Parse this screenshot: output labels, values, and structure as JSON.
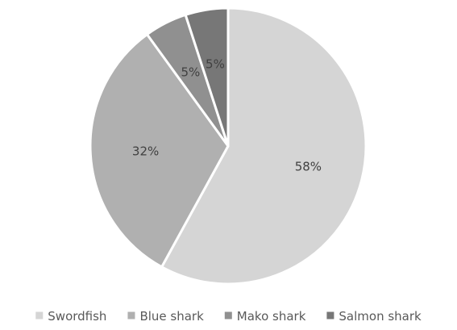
{
  "chart_data": {
    "type": "pie",
    "title": "",
    "categories": [
      "Swordfish",
      "Blue shark",
      "Mako shark",
      "Salmon shark"
    ],
    "values": [
      58,
      32,
      5,
      5
    ],
    "data_labels": [
      "58%",
      "32%",
      "5%",
      "5%"
    ],
    "colors": [
      "#d5d5d5",
      "#b0b0b0",
      "#909090",
      "#777777"
    ],
    "start_angle_deg": 0,
    "direction": "clockwise",
    "legend": {
      "position": "bottom",
      "entries": [
        "Swordfish",
        "Blue shark",
        "Mako shark",
        "Salmon shark"
      ]
    }
  }
}
